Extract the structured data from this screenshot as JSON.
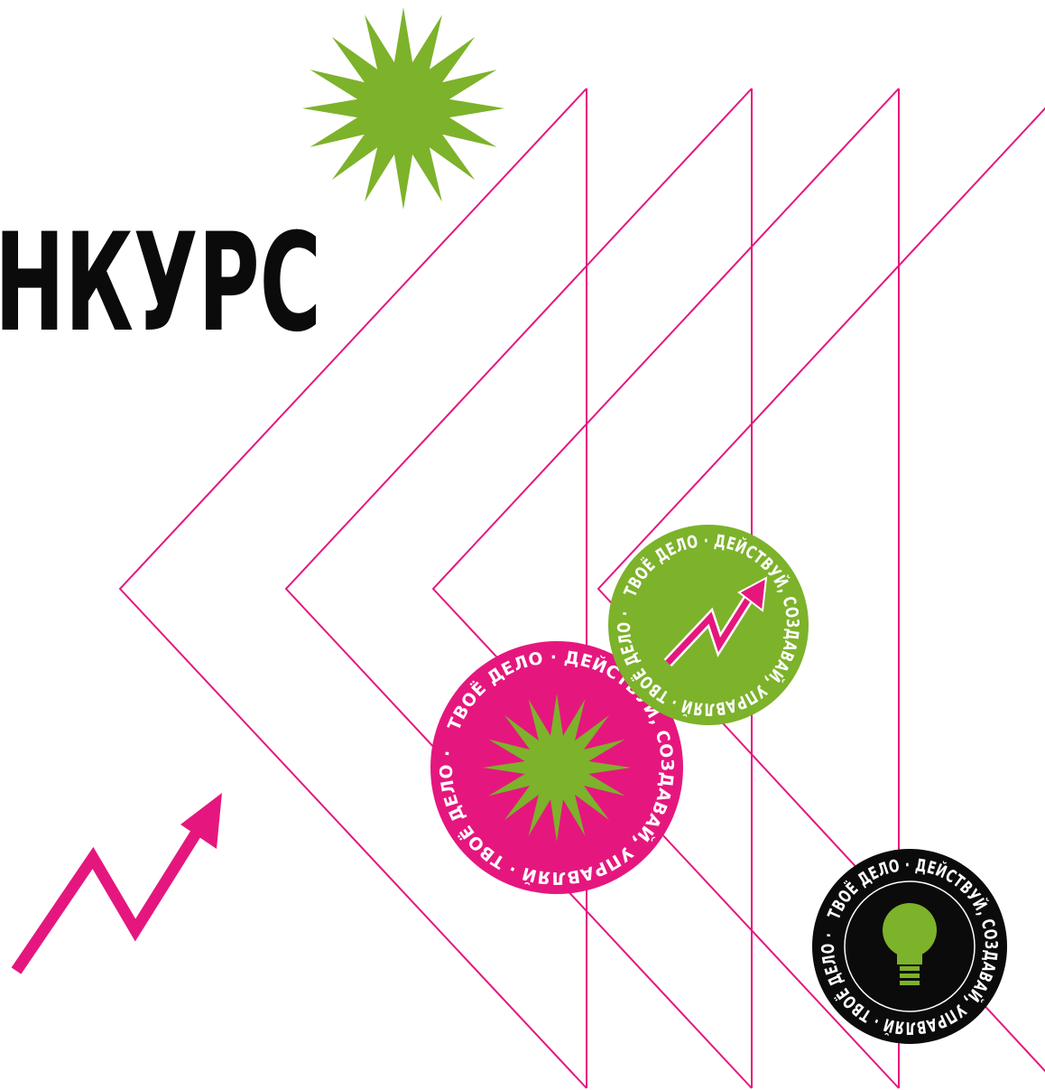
{
  "headline": "НКУРС",
  "badges": [
    {
      "ring": "ТВОЁ ДЕЛО · ДЕЙСТВУЙ, СОЗДАВАЙ, УПРАВЛЯЙ · ТВОЁ ДЕЛО ·"
    },
    {
      "ring": "ТВОЁ ДЕЛО · ДЕЙСТВУЙ, СОЗДАВАЙ, УПРАВЛЯЙ · ТВОЁ ДЕЛО ·"
    },
    {
      "ring": "ТВОЁ ДЕЛО · ДЕЙСТВУЙ, СОЗДАВАЙ, УПРАВЛЯЙ · ТВОЁ ДЕЛО ·"
    }
  ]
}
